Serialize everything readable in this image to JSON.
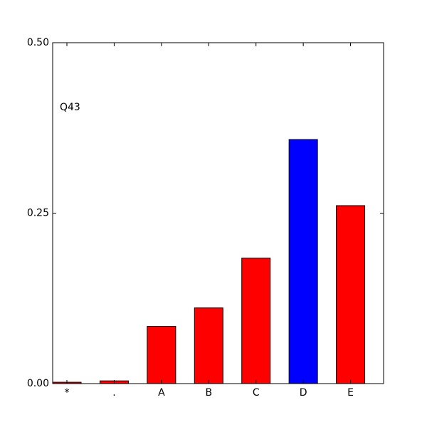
{
  "chart_data": {
    "type": "bar",
    "annotation": "Q43",
    "categories": [
      "*",
      ".",
      "A",
      "B",
      "C",
      "D",
      "E"
    ],
    "values": [
      0.002,
      0.004,
      0.084,
      0.111,
      0.184,
      0.358,
      0.261
    ],
    "colors": [
      "#ff0000",
      "#ff0000",
      "#ff0000",
      "#ff0000",
      "#ff0000",
      "#0000ff",
      "#ff0000"
    ],
    "ylim": [
      0,
      0.5
    ],
    "yticks": [
      {
        "value": 0,
        "label": "0.00"
      },
      {
        "value": 0.25,
        "label": "0.25"
      },
      {
        "value": 0.5,
        "label": "0.50"
      }
    ],
    "grid": false
  }
}
